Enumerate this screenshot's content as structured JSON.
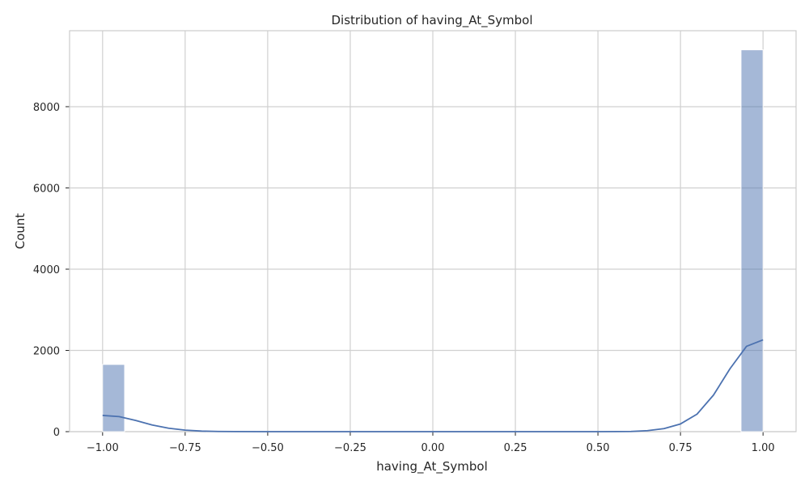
{
  "chart_data": {
    "type": "bar",
    "title": "Distribution of having_At_Symbol",
    "xlabel": "having_At_Symbol",
    "ylabel": "Count",
    "xlim": [
      -1.1,
      1.1
    ],
    "ylim": [
      0,
      9870
    ],
    "xticks": [
      -1.0,
      -0.75,
      -0.5,
      -0.25,
      0.0,
      0.25,
      0.5,
      0.75,
      1.0
    ],
    "xtick_labels": [
      "−1.00",
      "−0.75",
      "−0.50",
      "−0.25",
      "0.00",
      "0.25",
      "0.50",
      "0.75",
      "1.00"
    ],
    "yticks": [
      0,
      2000,
      4000,
      6000,
      8000
    ],
    "ytick_labels": [
      "0",
      "2000",
      "4000",
      "6000",
      "8000"
    ],
    "grid": true,
    "series": [
      {
        "kind": "histogram",
        "bins": [
          {
            "x0": -1.0,
            "x1": -0.9333,
            "count": 1655
          },
          {
            "x0": 0.9333,
            "x1": 1.0,
            "count": 9400
          }
        ],
        "color": "#4c72b0",
        "fill_opacity": 0.5
      },
      {
        "kind": "kde",
        "color": "#4c72b0",
        "x": [
          -1.0,
          -0.95,
          -0.9,
          -0.85,
          -0.8,
          -0.75,
          -0.7,
          -0.65,
          -0.6,
          -0.5,
          -0.25,
          0.0,
          0.25,
          0.5,
          0.6,
          0.65,
          0.7,
          0.75,
          0.8,
          0.85,
          0.9,
          0.95,
          1.0
        ],
        "y": [
          400,
          370,
          275,
          165,
          85,
          38,
          14,
          5,
          2,
          0,
          0,
          0,
          0,
          0,
          5,
          25,
          75,
          190,
          430,
          900,
          1550,
          2100,
          2260
        ]
      }
    ]
  }
}
